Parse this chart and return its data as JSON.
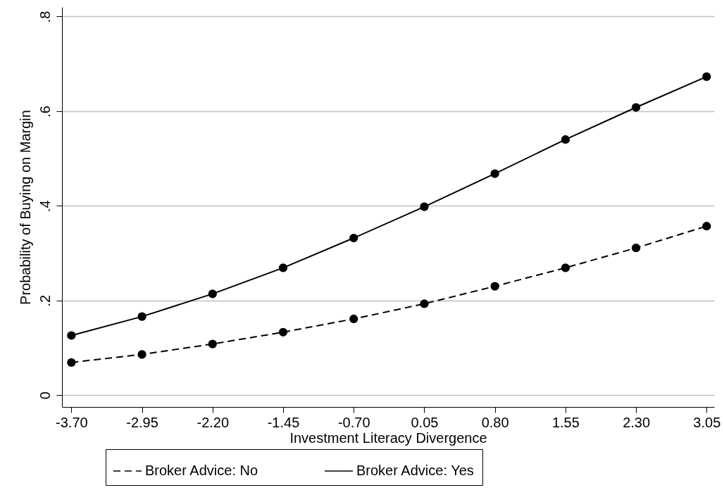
{
  "chart_data": {
    "type": "line",
    "xlabel": "Investment Literacy Divergence",
    "ylabel": "Probability of Buying on Margin",
    "x": [
      -3.7,
      -2.95,
      -2.2,
      -1.45,
      -0.7,
      0.05,
      0.8,
      1.55,
      2.3,
      3.05
    ],
    "series": [
      {
        "name": "Broker Advice: No",
        "color": "#000000",
        "line_style": "dashed",
        "values": [
          0.069,
          0.086,
          0.108,
          0.133,
          0.161,
          0.193,
          0.23,
          0.269,
          0.311,
          0.357
        ]
      },
      {
        "name": "Broker Advice: Yes",
        "color": "#000000",
        "line_style": "solid",
        "values": [
          0.126,
          0.166,
          0.214,
          0.269,
          0.332,
          0.398,
          0.468,
          0.54,
          0.608,
          0.673
        ]
      }
    ],
    "xlim": [
      -3.8,
      3.13
    ],
    "xticks": [
      {
        "value": -3.7,
        "label": "-3.70"
      },
      -2.95,
      {
        "value": -2.2,
        "label": "-2.20"
      },
      -1.45,
      {
        "value": -0.7,
        "label": "-0.70"
      },
      0.05,
      {
        "value": 0.8,
        "label": "0.80"
      },
      1.55,
      {
        "value": 2.3,
        "label": "2.30"
      },
      3.05
    ],
    "ylim": [
      -0.025,
      0.82
    ],
    "yticks": [
      0,
      {
        "value": 0.2,
        "label": ".2"
      },
      {
        "value": 0.4,
        "label": ".4"
      },
      {
        "value": 0.6,
        "label": ".6"
      },
      {
        "value": 0.8,
        "label": ".8"
      }
    ],
    "grid": "y",
    "legend": "bottom",
    "marker": "circle"
  }
}
